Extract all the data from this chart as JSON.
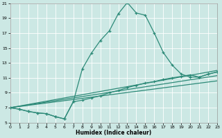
{
  "xlabel": "Humidex (Indice chaleur)",
  "background_color": "#cce8e4",
  "grid_color": "#ffffff",
  "line_color": "#2d8a78",
  "xmin": 0,
  "xmax": 23,
  "ymin": 5,
  "ymax": 21,
  "yticks": [
    5,
    7,
    9,
    11,
    13,
    15,
    17,
    19,
    21
  ],
  "xticks": [
    0,
    1,
    2,
    3,
    4,
    5,
    6,
    7,
    8,
    9,
    10,
    11,
    12,
    13,
    14,
    15,
    16,
    17,
    18,
    19,
    20,
    21,
    22,
    23
  ],
  "main_curve": {
    "x": [
      0,
      1,
      2,
      3,
      4,
      5,
      6,
      7,
      8,
      9,
      10,
      11,
      12,
      13,
      14,
      15,
      16,
      17,
      18,
      19,
      20,
      21,
      22,
      23
    ],
    "y": [
      7.0,
      6.8,
      6.5,
      6.3,
      6.2,
      5.8,
      5.5,
      7.8,
      12.2,
      14.3,
      16.0,
      17.3,
      19.6,
      21.1,
      19.7,
      19.4,
      17.0,
      14.4,
      12.7,
      11.5,
      11.1,
      11.1,
      11.5,
      11.8
    ]
  },
  "lower_curve": {
    "x": [
      0,
      1,
      2,
      3,
      4,
      5,
      6,
      7,
      8,
      9,
      10,
      11,
      12,
      13,
      14,
      15,
      16,
      17,
      18,
      19,
      20,
      21,
      22,
      23
    ],
    "y": [
      7.0,
      6.8,
      6.5,
      6.3,
      6.2,
      5.8,
      5.5,
      7.8,
      8.0,
      8.3,
      8.6,
      9.0,
      9.3,
      9.7,
      10.0,
      10.3,
      10.5,
      10.8,
      11.0,
      11.2,
      11.4,
      11.1,
      11.5,
      11.8
    ]
  },
  "straight_lines": [
    {
      "x": [
        0,
        23
      ],
      "y": [
        7.0,
        12.0
      ]
    },
    {
      "x": [
        0,
        23
      ],
      "y": [
        7.0,
        11.3
      ]
    },
    {
      "x": [
        0,
        23
      ],
      "y": [
        7.0,
        10.6
      ]
    }
  ]
}
